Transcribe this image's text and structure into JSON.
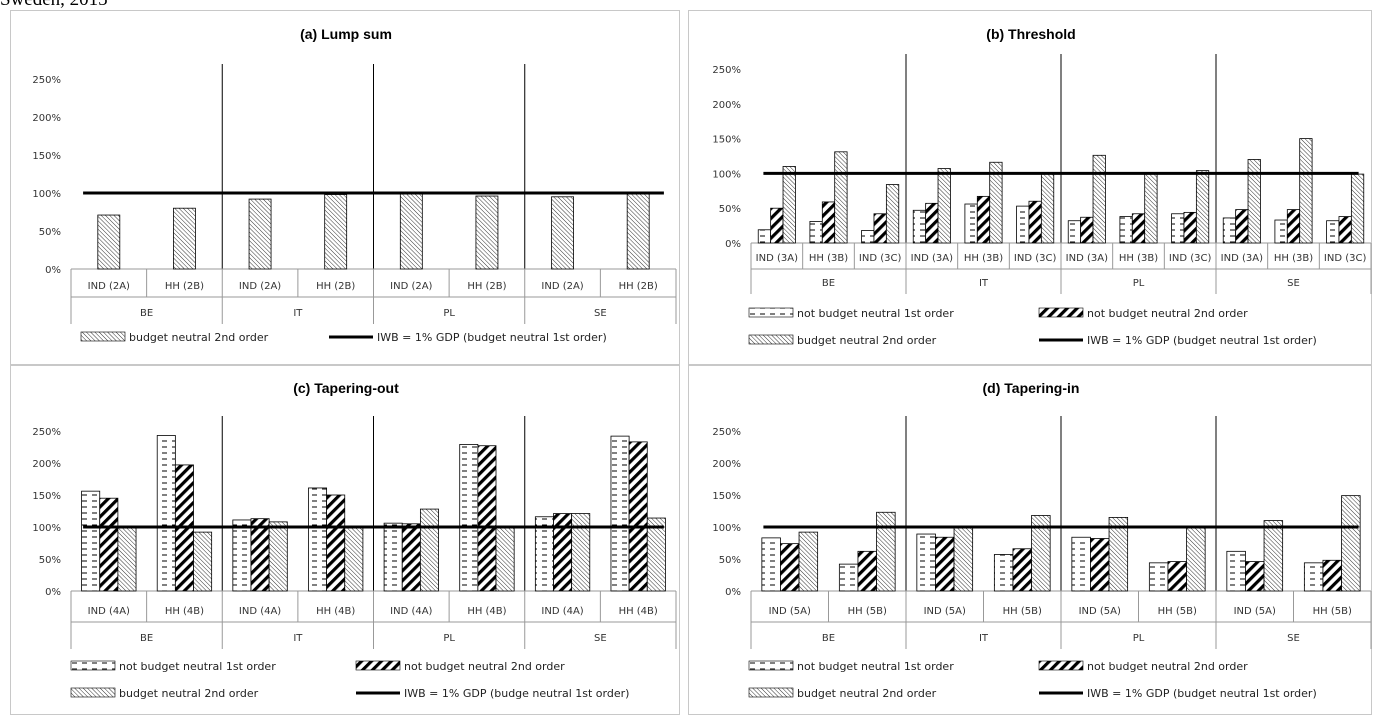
{
  "header_fragment": "Sweden, 2015",
  "colors": {
    "bar_fill": "#ffffff",
    "bar_stroke": "#000000",
    "line": "#000000",
    "separator": "#000000",
    "panel_border": "#c8c8c8"
  },
  "patterns": [
    "dash",
    "diag-bold",
    "diag-fine"
  ],
  "chart_data": [
    {
      "id": "panel-a",
      "type": "bar",
      "title": "(a) Lump sum",
      "ylim": [
        0,
        2.5
      ],
      "yticks": [
        "0%",
        "50%",
        "100%",
        "150%",
        "200%",
        "250%"
      ],
      "groups": [
        "BE",
        "IT",
        "PL",
        "SE"
      ],
      "categories": [
        "IND (2A)",
        "HH (2B)"
      ],
      "series": [
        {
          "name": "budget neutral 2nd order",
          "pattern": "diag-fine",
          "values": [
            [
              0.71,
              0.8
            ],
            [
              0.92,
              0.98
            ],
            [
              0.99,
              0.96
            ],
            [
              0.95,
              0.99
            ]
          ]
        }
      ],
      "reference_line": {
        "name": "IWB = 1% GDP (budget neutral 1st order)",
        "value": 1.0
      },
      "legend": "bottom"
    },
    {
      "id": "panel-b",
      "type": "bar",
      "title": "(b) Threshold",
      "ylim": [
        0,
        2.5
      ],
      "yticks": [
        "0%",
        "50%",
        "100%",
        "150%",
        "200%",
        "250%"
      ],
      "groups": [
        "BE",
        "IT",
        "PL",
        "SE"
      ],
      "categories": [
        "IND (3A)",
        "HH (3B)",
        "IND (3C)"
      ],
      "series": [
        {
          "name": "not budget neutral 1st order",
          "pattern": "dash",
          "values": [
            [
              0.19,
              0.31,
              0.18
            ],
            [
              0.47,
              0.56,
              0.53
            ],
            [
              0.32,
              0.38,
              0.42
            ],
            [
              0.36,
              0.33,
              0.32
            ]
          ]
        },
        {
          "name": "not budget neutral 2nd order",
          "pattern": "diag-bold",
          "values": [
            [
              0.5,
              0.59,
              0.42
            ],
            [
              0.57,
              0.67,
              0.6
            ],
            [
              0.37,
              0.42,
              0.44
            ],
            [
              0.48,
              0.48,
              0.38
            ]
          ]
        },
        {
          "name": "budget neutral 2nd order",
          "pattern": "diag-fine",
          "values": [
            [
              1.1,
              1.31,
              0.84
            ],
            [
              1.07,
              1.16,
              0.99
            ],
            [
              1.26,
              1.0,
              1.04
            ],
            [
              1.2,
              1.5,
              0.99
            ]
          ]
        }
      ],
      "reference_line": {
        "name": "IWB = 1% GDP (budget neutral 1st order)",
        "value": 1.0
      },
      "legend": "bottom"
    },
    {
      "id": "panel-c",
      "type": "bar",
      "title": "(c) Tapering-out",
      "ylim": [
        0,
        2.5
      ],
      "yticks": [
        "0%",
        "50%",
        "100%",
        "150%",
        "200%",
        "250%"
      ],
      "groups": [
        "BE",
        "IT",
        "PL",
        "SE"
      ],
      "categories": [
        "IND (4A)",
        "HH (4B)"
      ],
      "series": [
        {
          "name": "not budget neutral 1st order",
          "pattern": "dash",
          "values": [
            [
              1.56,
              2.43
            ],
            [
              1.11,
              1.61
            ],
            [
              1.06,
              2.29
            ],
            [
              1.16,
              2.42
            ]
          ]
        },
        {
          "name": "not budget neutral 2nd order",
          "pattern": "diag-bold",
          "values": [
            [
              1.45,
              1.97
            ],
            [
              1.13,
              1.5
            ],
            [
              1.05,
              2.27
            ],
            [
              1.21,
              2.33
            ]
          ]
        },
        {
          "name": "budget neutral 2nd order",
          "pattern": "diag-fine",
          "values": [
            [
              1.0,
              0.92
            ],
            [
              1.08,
              1.0
            ],
            [
              1.28,
              1.0
            ],
            [
              1.21,
              1.14
            ]
          ]
        }
      ],
      "reference_line": {
        "name": "IWB = 1% GDP (budge neutral 1st order)",
        "value": 1.0
      },
      "legend": "bottom"
    },
    {
      "id": "panel-d",
      "type": "bar",
      "title": "(d) Tapering-in",
      "ylim": [
        0,
        2.5
      ],
      "yticks": [
        "0%",
        "50%",
        "100%",
        "150%",
        "200%",
        "250%"
      ],
      "groups": [
        "BE",
        "IT",
        "PL",
        "SE"
      ],
      "categories": [
        "IND (5A)",
        "HH (5B)"
      ],
      "series": [
        {
          "name": "not budget neutral 1st order",
          "pattern": "dash",
          "values": [
            [
              0.83,
              0.42
            ],
            [
              0.89,
              0.57
            ],
            [
              0.84,
              0.44
            ],
            [
              0.62,
              0.44
            ]
          ]
        },
        {
          "name": "not budget neutral 2nd order",
          "pattern": "diag-bold",
          "values": [
            [
              0.74,
              0.62
            ],
            [
              0.84,
              0.66
            ],
            [
              0.82,
              0.46
            ],
            [
              0.46,
              0.48
            ]
          ]
        },
        {
          "name": "budget neutral 2nd order",
          "pattern": "diag-fine",
          "values": [
            [
              0.92,
              1.23
            ],
            [
              1.0,
              1.18
            ],
            [
              1.15,
              1.0
            ],
            [
              1.1,
              1.49
            ]
          ]
        }
      ],
      "reference_line": {
        "name": "IWB = 1% GDP (budget neutral 1st order)",
        "value": 1.0
      },
      "legend": "bottom"
    }
  ]
}
